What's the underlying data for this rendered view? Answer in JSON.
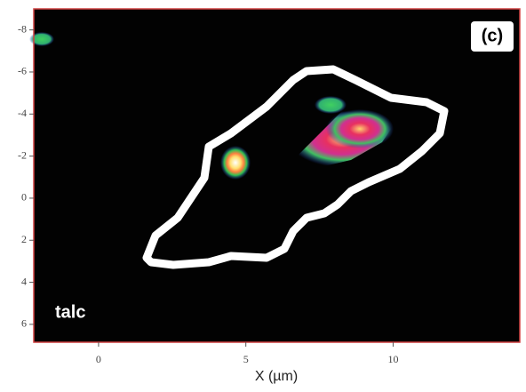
{
  "chart_data": {
    "type": "image",
    "panel_label": "(c)",
    "annotation": "talc",
    "x_label": "X (µm)",
    "xlim": [
      -2.2,
      14.3
    ],
    "xticks": [
      0,
      5,
      10
    ],
    "ylim": [
      6.85,
      -9
    ],
    "yticks": [
      -8,
      -6,
      -4,
      -2,
      0,
      2,
      4,
      6
    ],
    "frame_color": "#d04040"
  }
}
